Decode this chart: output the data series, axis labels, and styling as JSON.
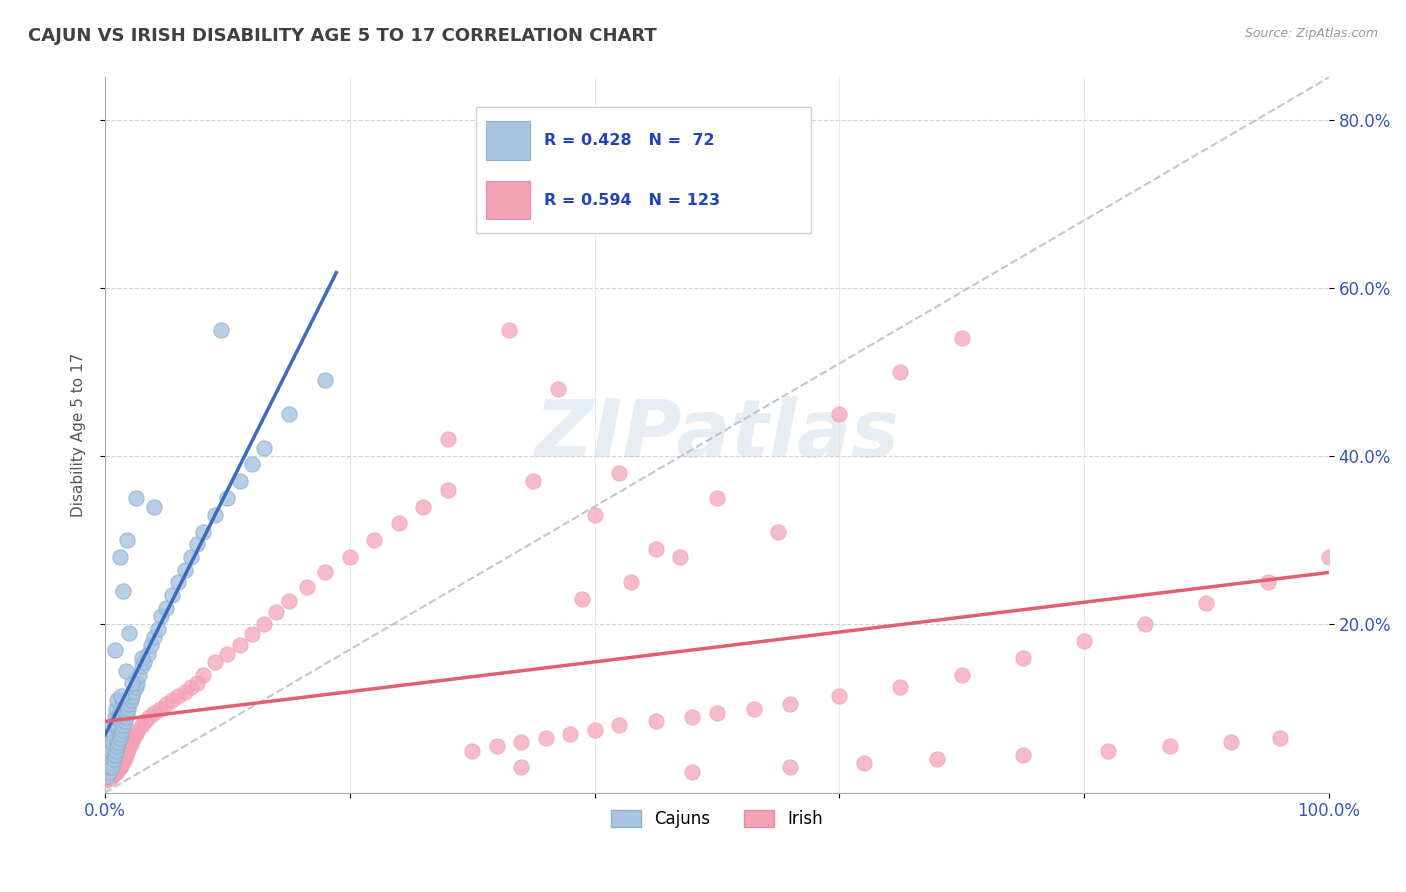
{
  "title": "CAJUN VS IRISH DISABILITY AGE 5 TO 17 CORRELATION CHART",
  "source_text": "Source: ZipAtlas.com",
  "ylabel": "Disability Age 5 to 17",
  "xlim": [
    0.0,
    1.0
  ],
  "ylim": [
    0.0,
    0.85
  ],
  "cajun_R": 0.428,
  "cajun_N": 72,
  "irish_R": 0.594,
  "irish_N": 123,
  "cajun_color": "#a8c4e0",
  "irish_color": "#f4a0b5",
  "cajun_line_color": "#3a6bbf",
  "irish_line_color": "#e06070",
  "background_color": "#ffffff",
  "watermark": "ZIPatlas",
  "cajun_x": [
    0.002,
    0.003,
    0.003,
    0.004,
    0.004,
    0.005,
    0.005,
    0.005,
    0.006,
    0.006,
    0.007,
    0.007,
    0.008,
    0.008,
    0.009,
    0.009,
    0.01,
    0.01,
    0.01,
    0.011,
    0.011,
    0.012,
    0.012,
    0.013,
    0.013,
    0.014,
    0.015,
    0.015,
    0.016,
    0.017,
    0.018,
    0.019,
    0.02,
    0.021,
    0.022,
    0.023,
    0.025,
    0.026,
    0.028,
    0.03,
    0.032,
    0.035,
    0.038,
    0.04,
    0.043,
    0.046,
    0.05,
    0.055,
    0.06,
    0.065,
    0.07,
    0.075,
    0.08,
    0.09,
    0.1,
    0.11,
    0.12,
    0.13,
    0.15,
    0.18,
    0.095,
    0.04,
    0.025,
    0.018,
    0.012,
    0.015,
    0.02,
    0.03,
    0.008,
    0.022,
    0.017,
    0.013
  ],
  "cajun_y": [
    0.02,
    0.025,
    0.04,
    0.03,
    0.055,
    0.035,
    0.05,
    0.065,
    0.03,
    0.06,
    0.04,
    0.08,
    0.045,
    0.09,
    0.05,
    0.1,
    0.055,
    0.08,
    0.11,
    0.06,
    0.09,
    0.065,
    0.095,
    0.07,
    0.1,
    0.075,
    0.08,
    0.11,
    0.085,
    0.09,
    0.095,
    0.1,
    0.105,
    0.11,
    0.115,
    0.12,
    0.125,
    0.13,
    0.14,
    0.15,
    0.155,
    0.165,
    0.175,
    0.185,
    0.195,
    0.21,
    0.22,
    0.235,
    0.25,
    0.265,
    0.28,
    0.295,
    0.31,
    0.33,
    0.35,
    0.37,
    0.39,
    0.41,
    0.45,
    0.49,
    0.55,
    0.34,
    0.35,
    0.3,
    0.28,
    0.24,
    0.19,
    0.16,
    0.17,
    0.13,
    0.145,
    0.115
  ],
  "irish_x": [
    0.001,
    0.002,
    0.002,
    0.003,
    0.003,
    0.003,
    0.004,
    0.004,
    0.004,
    0.005,
    0.005,
    0.005,
    0.005,
    0.006,
    0.006,
    0.006,
    0.007,
    0.007,
    0.007,
    0.008,
    0.008,
    0.008,
    0.009,
    0.009,
    0.009,
    0.01,
    0.01,
    0.01,
    0.01,
    0.011,
    0.011,
    0.011,
    0.012,
    0.012,
    0.012,
    0.013,
    0.013,
    0.014,
    0.014,
    0.015,
    0.015,
    0.016,
    0.017,
    0.018,
    0.019,
    0.02,
    0.021,
    0.022,
    0.023,
    0.025,
    0.027,
    0.03,
    0.033,
    0.036,
    0.04,
    0.045,
    0.05,
    0.055,
    0.06,
    0.065,
    0.07,
    0.075,
    0.08,
    0.09,
    0.1,
    0.11,
    0.12,
    0.13,
    0.14,
    0.15,
    0.165,
    0.18,
    0.2,
    0.22,
    0.24,
    0.26,
    0.28,
    0.3,
    0.32,
    0.34,
    0.36,
    0.38,
    0.4,
    0.42,
    0.45,
    0.48,
    0.5,
    0.53,
    0.56,
    0.6,
    0.65,
    0.7,
    0.75,
    0.8,
    0.85,
    0.9,
    0.95,
    1.0,
    0.33,
    0.37,
    0.28,
    0.42,
    0.5,
    0.6,
    0.65,
    0.7,
    0.55,
    0.47,
    0.43,
    0.39,
    0.34,
    0.48,
    0.56,
    0.62,
    0.68,
    0.75,
    0.82,
    0.87,
    0.92,
    0.96,
    0.4,
    0.45,
    0.35
  ],
  "irish_y": [
    0.015,
    0.018,
    0.025,
    0.02,
    0.03,
    0.04,
    0.022,
    0.035,
    0.05,
    0.018,
    0.025,
    0.038,
    0.055,
    0.02,
    0.032,
    0.048,
    0.022,
    0.035,
    0.052,
    0.025,
    0.038,
    0.058,
    0.028,
    0.042,
    0.062,
    0.025,
    0.038,
    0.055,
    0.07,
    0.028,
    0.042,
    0.062,
    0.03,
    0.048,
    0.068,
    0.032,
    0.052,
    0.035,
    0.058,
    0.038,
    0.062,
    0.04,
    0.045,
    0.048,
    0.052,
    0.055,
    0.058,
    0.062,
    0.065,
    0.07,
    0.075,
    0.08,
    0.085,
    0.09,
    0.095,
    0.1,
    0.105,
    0.11,
    0.115,
    0.12,
    0.125,
    0.13,
    0.14,
    0.155,
    0.165,
    0.175,
    0.188,
    0.2,
    0.215,
    0.228,
    0.245,
    0.262,
    0.28,
    0.3,
    0.32,
    0.34,
    0.36,
    0.05,
    0.055,
    0.06,
    0.065,
    0.07,
    0.075,
    0.08,
    0.085,
    0.09,
    0.095,
    0.1,
    0.105,
    0.115,
    0.125,
    0.14,
    0.16,
    0.18,
    0.2,
    0.225,
    0.25,
    0.28,
    0.55,
    0.48,
    0.42,
    0.38,
    0.35,
    0.45,
    0.5,
    0.54,
    0.31,
    0.28,
    0.25,
    0.23,
    0.03,
    0.025,
    0.03,
    0.035,
    0.04,
    0.045,
    0.05,
    0.055,
    0.06,
    0.065,
    0.33,
    0.29,
    0.37
  ]
}
